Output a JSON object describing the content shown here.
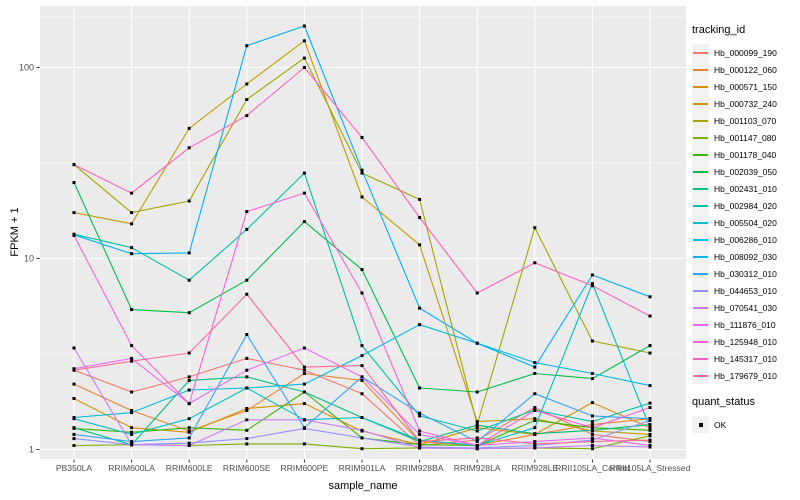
{
  "chart_data": {
    "type": "line",
    "title": "",
    "xlabel": "sample_name",
    "ylabel": "FPKM + 1",
    "y_scale": "log10",
    "y_ticks": [
      1,
      10,
      100
    ],
    "y_tick_labels": [
      "1",
      "10",
      "100"
    ],
    "y_minor_ticks": [
      3.1623,
      31.623
    ],
    "ylim": [
      0.9,
      210
    ],
    "grid": true,
    "legend_position": "right",
    "marker": "small-black-square",
    "categories": [
      "PB350LA",
      "RRIM600LA",
      "RRIM600LE",
      "RRIM600SE",
      "RRIM600PE",
      "RRIM901LA",
      "RRIM928BA",
      "RRIM928LA",
      "RRIM928LE",
      "RRII105LA_Control",
      "RRII105LA_Stressed"
    ],
    "series": [
      {
        "name": "Hb_000099_190",
        "color": "#F8766D",
        "values": [
          2.6,
          2.0,
          2.4,
          3.0,
          2.6,
          1.96,
          1.05,
          1.12,
          1.66,
          1.2,
          1.1
        ]
      },
      {
        "name": "Hb_000122_060",
        "color": "#EA8331",
        "values": [
          2.2,
          1.6,
          1.25,
          1.6,
          2.5,
          2.3,
          1.1,
          1.05,
          1.2,
          1.35,
          1.45
        ]
      },
      {
        "name": "Hb_000571_150",
        "color": "#D89000",
        "values": [
          1.85,
          1.3,
          1.23,
          1.64,
          1.74,
          1.25,
          1.06,
          1.3,
          1.2,
          1.76,
          1.3
        ]
      },
      {
        "name": "Hb_000732_240",
        "color": "#C09B00",
        "values": [
          17.4,
          15.2,
          48,
          82,
          138,
          21,
          11.8,
          1.4,
          1.45,
          1.25,
          1.2
        ]
      },
      {
        "name": "Hb_001103_070",
        "color": "#A3A500",
        "values": [
          31,
          17.4,
          20,
          68,
          112,
          28,
          20.4,
          1.35,
          14.5,
          3.7,
          3.2
        ]
      },
      {
        "name": "Hb_001147_080",
        "color": "#7CAE00",
        "values": [
          1.05,
          1.06,
          1.05,
          1.07,
          1.07,
          1.01,
          1.02,
          1.01,
          1.02,
          1.01,
          1.18
        ]
      },
      {
        "name": "Hb_001178_040",
        "color": "#39B600",
        "values": [
          1.29,
          1.23,
          1.3,
          1.26,
          2.0,
          1.15,
          1.06,
          1.05,
          1.42,
          1.3,
          1.26
        ]
      },
      {
        "name": "Hb_002039_050",
        "color": "#00BB4E",
        "values": [
          25,
          5.4,
          5.2,
          7.7,
          15.6,
          8.75,
          2.1,
          2.0,
          2.5,
          2.35,
          3.5
        ]
      },
      {
        "name": "Hb_002431_010",
        "color": "#00BF7D",
        "values": [
          1.3,
          1.06,
          2.3,
          2.4,
          2.0,
          1.47,
          1.1,
          1.34,
          1.21,
          1.26,
          1.35
        ]
      },
      {
        "name": "Hb_002984_020",
        "color": "#00C1A3",
        "values": [
          13.4,
          11.4,
          7.7,
          14.2,
          28,
          3.5,
          1.5,
          1.25,
          1.61,
          1.4,
          1.75
        ]
      },
      {
        "name": "Hb_005504_020",
        "color": "#00BFC4",
        "values": [
          1.45,
          1.2,
          1.45,
          2.1,
          1.43,
          1.47,
          1.12,
          1.05,
          1.3,
          7.4,
          1.3
        ]
      },
      {
        "name": "Hb_006286_010",
        "color": "#00BAE0",
        "values": [
          1.47,
          1.56,
          2.05,
          2.1,
          2.2,
          3.1,
          4.5,
          3.6,
          2.85,
          2.5,
          2.16
        ]
      },
      {
        "name": "Hb_008092_030",
        "color": "#00B0F6",
        "values": [
          13.3,
          10.6,
          10.7,
          130,
          165,
          29,
          5.5,
          3.6,
          2.7,
          8.2,
          6.3
        ]
      },
      {
        "name": "Hb_030312_010",
        "color": "#35A2FF",
        "values": [
          1.2,
          1.1,
          1.15,
          4.0,
          1.3,
          2.4,
          1.55,
          1.1,
          1.96,
          1.5,
          1.45
        ]
      },
      {
        "name": "Hb_044653_010",
        "color": "#9590FF",
        "values": [
          1.14,
          1.06,
          1.08,
          1.14,
          1.29,
          1.15,
          1.03,
          1.02,
          1.05,
          1.12,
          1.42
        ]
      },
      {
        "name": "Hb_070541_030",
        "color": "#C77CFF",
        "values": [
          3.4,
          1.06,
          1.05,
          1.43,
          1.43,
          1.26,
          1.02,
          1.01,
          1.02,
          1.05,
          1.03
        ]
      },
      {
        "name": "Hb_111876_010",
        "color": "#E76BF3",
        "values": [
          2.65,
          3.0,
          1.74,
          2.6,
          3.4,
          2.4,
          1.2,
          1.05,
          1.1,
          1.15,
          1.05
        ]
      },
      {
        "name": "Hb_125948_010",
        "color": "#FA62DB",
        "values": [
          13.2,
          3.5,
          1.74,
          17.6,
          22,
          6.6,
          1.25,
          1.05,
          1.6,
          1.3,
          1.66
        ]
      },
      {
        "name": "Hb_145317_010",
        "color": "#FF62BC",
        "values": [
          31,
          22,
          38,
          56,
          100,
          43,
          16.4,
          6.6,
          9.5,
          7.2,
          5.0
        ]
      },
      {
        "name": "Hb_179679_010",
        "color": "#FF6A98",
        "values": [
          2.6,
          2.9,
          3.2,
          6.5,
          2.7,
          2.75,
          1.1,
          1.15,
          1.07,
          1.1,
          1.12
        ]
      }
    ]
  },
  "legend": {
    "title": "tracking_id"
  },
  "legend2": {
    "title": "quant_status",
    "items": [
      {
        "label": "OK"
      }
    ]
  },
  "styles": {
    "panel_bg": "#EBEBEB",
    "grid_color": "#FFFFFF",
    "tick_color": "#333333",
    "tick_label_color": "#4D4D4D",
    "marker_color": "#000000",
    "legend_key_bg": "#F2F2F2"
  }
}
